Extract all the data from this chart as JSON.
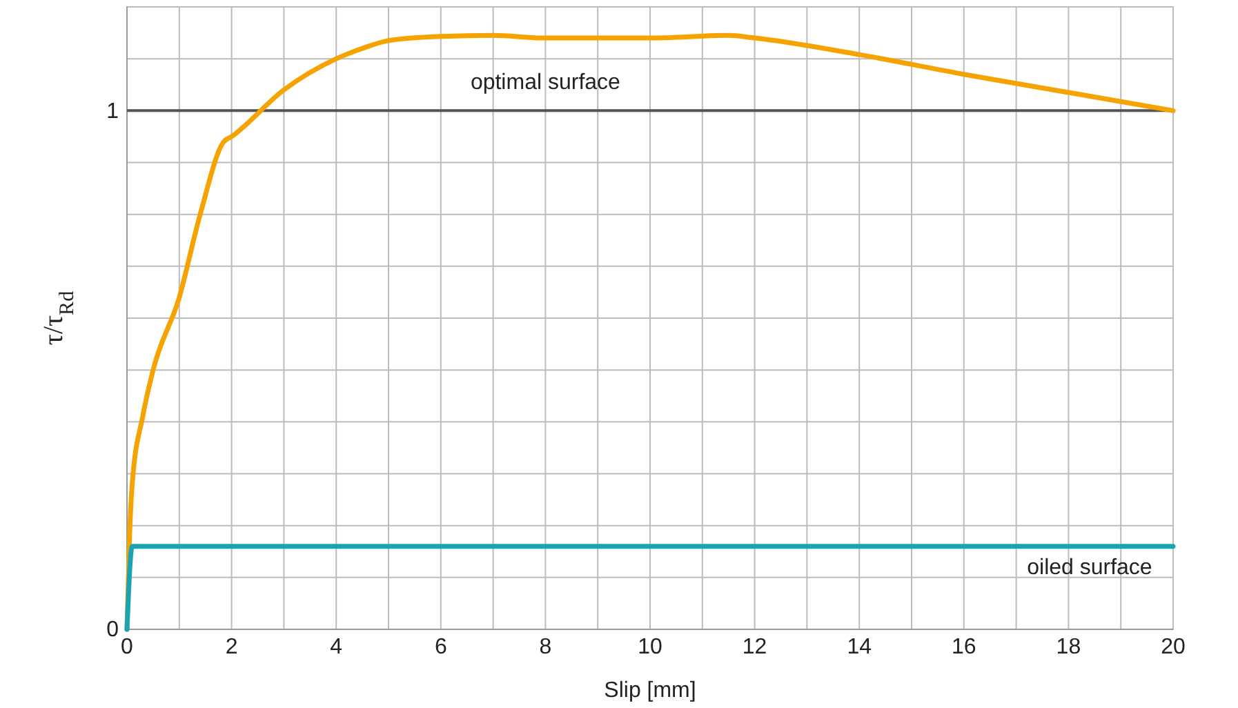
{
  "chart_data": {
    "type": "line",
    "xlabel": "Slip [mm]",
    "ylabel": "τ/τ$_{Rd}$",
    "xlim": [
      0,
      20
    ],
    "ylim": [
      0,
      1.2
    ],
    "xticks": [
      0,
      {
        "value": 1,
        "label": null
      },
      2,
      {
        "value": 3,
        "label": null
      },
      4,
      {
        "value": 5,
        "label": null
      },
      6,
      {
        "value": 7,
        "label": null
      },
      8,
      {
        "value": 9,
        "label": null
      },
      10,
      {
        "value": 11,
        "label": null
      },
      12,
      {
        "value": 13,
        "label": null
      },
      14,
      {
        "value": 15,
        "label": null
      },
      16,
      {
        "value": 17,
        "label": null
      },
      18,
      {
        "value": 19,
        "label": null
      },
      20
    ],
    "yticks": [
      0,
      {
        "value": 0.1,
        "label": null
      },
      {
        "value": 0.2,
        "label": null
      },
      {
        "value": 0.3,
        "label": null
      },
      {
        "value": 0.4,
        "label": null
      },
      {
        "value": 0.5,
        "label": null
      },
      {
        "value": 0.6,
        "label": null
      },
      {
        "value": 0.7,
        "label": null
      },
      {
        "value": 0.8,
        "label": null
      },
      {
        "value": 0.9,
        "label": null
      },
      1,
      {
        "value": 1.1,
        "label": null
      },
      {
        "value": 1.2,
        "label": null
      }
    ],
    "grid": true,
    "marker": "none",
    "line_style": "solid",
    "ref_lines": [
      {
        "axis": "y",
        "value": 1,
        "color": "#555555"
      }
    ],
    "series": [
      {
        "name": "optimal surface",
        "color": "#f5a300",
        "x": [
          0,
          0.05,
          0.1,
          0.3,
          0.5,
          1,
          1.4,
          1.85,
          2,
          3,
          4,
          4.5,
          5,
          6,
          7,
          8,
          10,
          11.5,
          12,
          14,
          16,
          18,
          20
        ],
        "values": [
          0,
          0.18,
          0.28,
          0.41,
          0.5,
          0.64,
          0.8,
          0.94,
          0.95,
          1.04,
          1.1,
          1.12,
          1.135,
          1.143,
          1.145,
          1.14,
          1.14,
          1.145,
          1.14,
          1.108,
          1.07,
          1.035,
          1.0
        ]
      },
      {
        "name": "oiled surface",
        "color": "#1aa3b0",
        "x": [
          0,
          0.1,
          20
        ],
        "values": [
          0,
          0.16,
          0.16
        ]
      }
    ]
  }
}
